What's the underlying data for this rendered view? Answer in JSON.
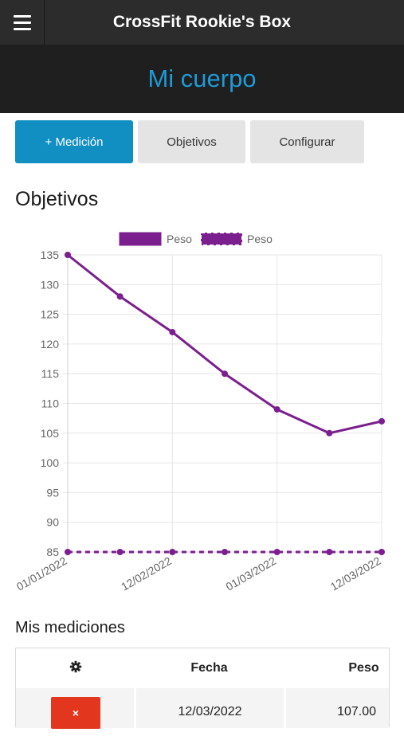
{
  "header": {
    "app_title": "CrossFit Rookie's Box",
    "menu_icon": "hamburger-menu-icon"
  },
  "hero": {
    "title": "Mi cuerpo"
  },
  "tabs": [
    {
      "label": "+ Medición",
      "active": true
    },
    {
      "label": "Objetivos",
      "active": false
    },
    {
      "label": "Configurar",
      "active": false
    }
  ],
  "objetivos_heading": "Objetivos",
  "chart_data": {
    "type": "line",
    "categories": [
      "01/01/2022",
      "",
      "12/02/2022",
      "",
      "01/03/2022",
      "",
      "12/03/2022"
    ],
    "x_tick_labels": [
      "01/01/2022",
      "12/02/2022",
      "01/03/2022",
      "12/03/2022"
    ],
    "series": [
      {
        "name": "Peso",
        "style": "solid",
        "color": "#7b1f8f",
        "values": [
          135,
          128,
          122,
          115,
          109,
          105,
          107
        ]
      },
      {
        "name": "Peso",
        "style": "dashed",
        "color": "#7b1f8f",
        "values": [
          85,
          85,
          85,
          85,
          85,
          85,
          85
        ]
      }
    ],
    "y_ticks": [
      135,
      130,
      125,
      120,
      115,
      110,
      105,
      100,
      95,
      90,
      85
    ],
    "ylim": [
      85,
      135
    ],
    "grid": true,
    "legend": "top"
  },
  "mediciones": {
    "heading": "Mis mediciones",
    "settings_icon": "gear-icon",
    "columns": [
      "Fecha",
      "Peso"
    ],
    "rows": [
      {
        "delete_label": "×",
        "fecha": "12/03/2022",
        "peso": "107.00"
      }
    ]
  },
  "colors": {
    "accent": "#1e9ad6",
    "primary_button": "#118ec2",
    "series": "#7b1f8f",
    "delete": "#e2361f"
  }
}
